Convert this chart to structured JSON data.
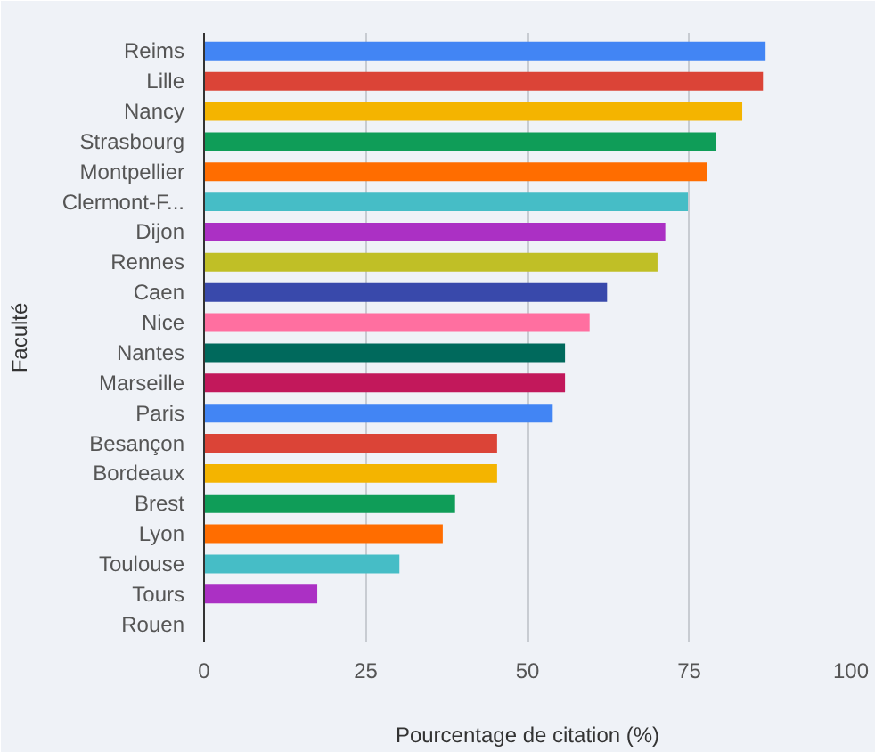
{
  "chart_data": {
    "type": "bar",
    "orientation": "horizontal",
    "xlabel": "Pourcentage de citation (%)",
    "ylabel": "Faculté",
    "categories": [
      "Reims",
      "Lille",
      "Nancy",
      "Strasbourg",
      "Montpellier",
      "Clermont-F...",
      "Dijon",
      "Rennes",
      "Caen",
      "Nice",
      "Nantes",
      "Marseille",
      "Paris",
      "Besançon",
      "Bordeaux",
      "Brest",
      "Lyon",
      "Toulouse",
      "Tours",
      "Rouen"
    ],
    "values": [
      86.8,
      86.4,
      83.2,
      79.1,
      77.8,
      74.8,
      71.3,
      70.1,
      62.3,
      59.6,
      55.8,
      55.8,
      53.9,
      45.3,
      45.3,
      38.8,
      36.9,
      30.2,
      17.5,
      0
    ],
    "colors": [
      "#4285f4",
      "#db4437",
      "#f4b400",
      "#0f9d58",
      "#ff6d00",
      "#46bdc6",
      "#ab30c4",
      "#c0bf26",
      "#3949ab",
      "#ff6fa0",
      "#00695c",
      "#c2185b",
      "#4285f4",
      "#db4437",
      "#f4b400",
      "#0f9d58",
      "#ff6d00",
      "#46bdc6",
      "#ab30c4",
      "#c0bf26"
    ],
    "xlim": [
      0,
      100
    ],
    "xticks": [
      0,
      25,
      50,
      75,
      100
    ],
    "grid": "x"
  }
}
